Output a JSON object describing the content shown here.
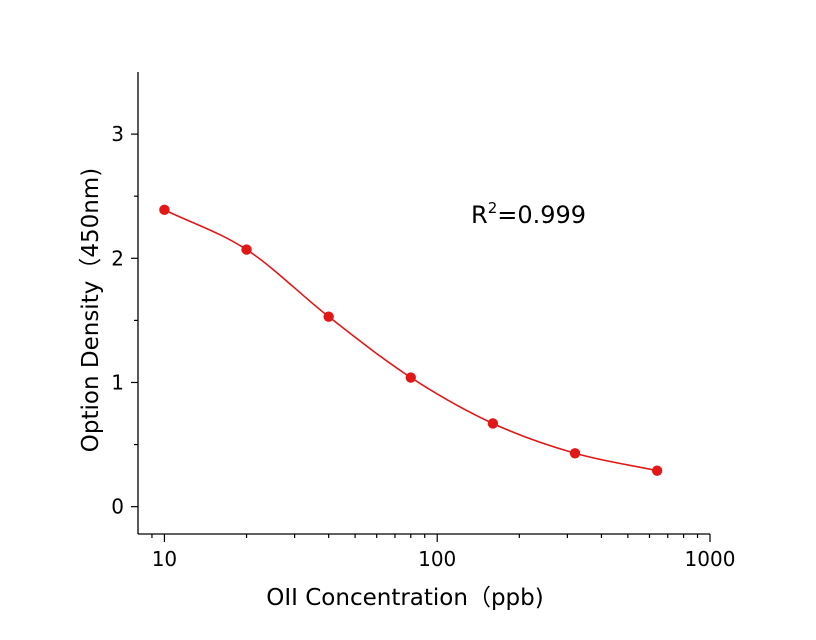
{
  "chart_data": {
    "type": "scatter",
    "xlabel": "OII Concentration（ppb)",
    "ylabel": "Option Density（450nm)",
    "x_scale": "log",
    "xlim": [
      8,
      1000
    ],
    "ylim": [
      -0.22,
      3.5
    ],
    "x_ticks": [
      "10",
      "100",
      "1000"
    ],
    "y_ticks": [
      "0",
      "1",
      "2",
      "3"
    ],
    "grid": false,
    "series": [
      {
        "x": [
          10,
          20,
          40,
          80,
          160,
          320,
          640
        ],
        "y": [
          2.39,
          2.07,
          1.53,
          1.04,
          0.67,
          0.43,
          0.29
        ],
        "fit": "4PL curve",
        "color": "#e01818"
      }
    ],
    "annotation": {
      "prefix": "R",
      "superscript": "2",
      "suffix": "=0.999"
    }
  }
}
